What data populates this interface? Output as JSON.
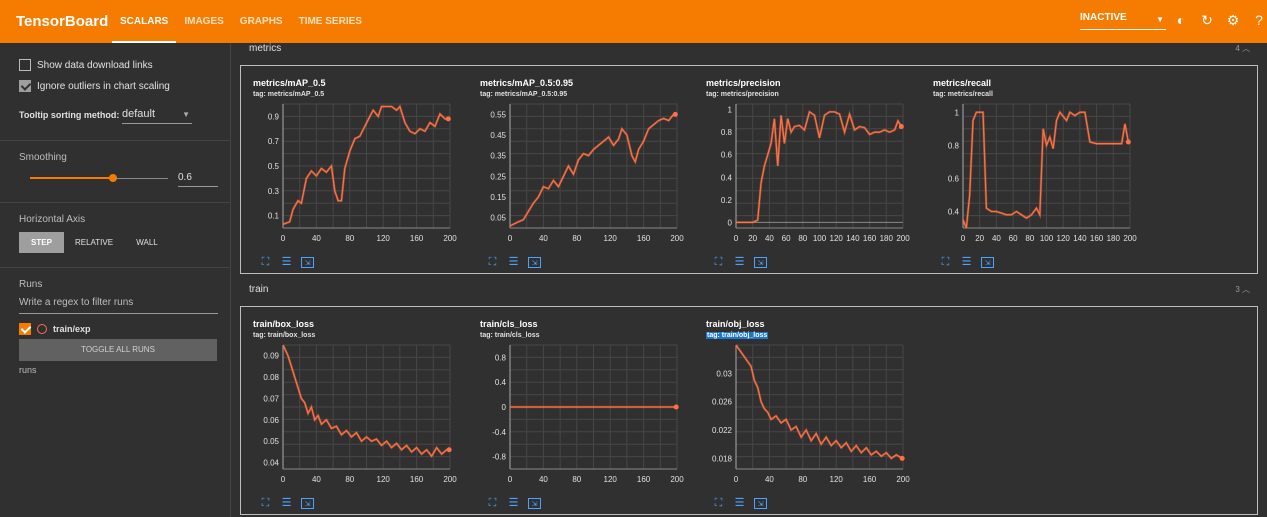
{
  "app": {
    "title": "TensorBoard"
  },
  "nav": {
    "tabs": [
      "SCALARS",
      "IMAGES",
      "GRAPHS",
      "TIME SERIES"
    ]
  },
  "header": {
    "status": "INACTIVE"
  },
  "sidebar": {
    "show_download": "Show data download links",
    "ignore_outliers": "Ignore outliers in chart scaling",
    "tooltip_label": "Tooltip sorting method:",
    "tooltip_value": "default",
    "smoothing_title": "Smoothing",
    "smoothing_value": "0.6",
    "axis_title": "Horizontal Axis",
    "axis_step": "STEP",
    "axis_relative": "RELATIVE",
    "axis_wall": "WALL",
    "runs_title": "Runs",
    "filter_placeholder": "Write a regex to filter runs",
    "run_name": "train/exp",
    "toggle_runs": "TOGGLE ALL RUNS",
    "runs_footer": "runs"
  },
  "sections": [
    {
      "name": "metrics",
      "count": "4"
    },
    {
      "name": "train",
      "count": "3"
    }
  ],
  "colors": {
    "accent": "#f57c00",
    "series": "#ff7043",
    "link": "#4aa3ff"
  },
  "charts": [
    {
      "title": "metrics/mAP_0.5",
      "tag": "tag: metrics/mAP_0.5",
      "yticks": [
        "0.9",
        "0.7",
        "0.5",
        "0.3",
        "0.1"
      ],
      "xticks": [
        "0",
        "40",
        "80",
        "120",
        "160",
        "200"
      ],
      "ylim": [
        0,
        1.0
      ],
      "xlim": [
        0,
        200
      ],
      "points": [
        [
          0,
          0.03
        ],
        [
          8,
          0.05
        ],
        [
          12,
          0.15
        ],
        [
          18,
          0.22
        ],
        [
          22,
          0.2
        ],
        [
          28,
          0.4
        ],
        [
          34,
          0.46
        ],
        [
          40,
          0.42
        ],
        [
          46,
          0.48
        ],
        [
          52,
          0.45
        ],
        [
          58,
          0.5
        ],
        [
          62,
          0.3
        ],
        [
          66,
          0.22
        ],
        [
          70,
          0.22
        ],
        [
          74,
          0.48
        ],
        [
          80,
          0.62
        ],
        [
          86,
          0.72
        ],
        [
          92,
          0.74
        ],
        [
          98,
          0.82
        ],
        [
          104,
          0.9
        ],
        [
          108,
          0.95
        ],
        [
          114,
          0.9
        ],
        [
          118,
          0.98
        ],
        [
          124,
          0.98
        ],
        [
          130,
          0.98
        ],
        [
          136,
          0.95
        ],
        [
          140,
          0.98
        ],
        [
          146,
          0.85
        ],
        [
          152,
          0.78
        ],
        [
          158,
          0.76
        ],
        [
          164,
          0.8
        ],
        [
          170,
          0.78
        ],
        [
          176,
          0.85
        ],
        [
          182,
          0.82
        ],
        [
          188,
          0.92
        ],
        [
          194,
          0.88
        ],
        [
          198,
          0.88
        ]
      ]
    },
    {
      "title": "metrics/mAP_0.5:0.95",
      "tag": "tag: metrics/mAP_0.5:0.95",
      "yticks": [
        "0.55",
        "0.45",
        "0.35",
        "0.25",
        "0.15",
        "0.05"
      ],
      "xticks": [
        "0",
        "40",
        "80",
        "120",
        "160",
        "200"
      ],
      "ylim": [
        0,
        0.6
      ],
      "xlim": [
        0,
        200
      ],
      "points": [
        [
          0,
          0.01
        ],
        [
          10,
          0.03
        ],
        [
          16,
          0.04
        ],
        [
          22,
          0.08
        ],
        [
          28,
          0.12
        ],
        [
          34,
          0.15
        ],
        [
          40,
          0.2
        ],
        [
          46,
          0.19
        ],
        [
          52,
          0.23
        ],
        [
          58,
          0.2
        ],
        [
          64,
          0.25
        ],
        [
          70,
          0.3
        ],
        [
          76,
          0.26
        ],
        [
          82,
          0.33
        ],
        [
          88,
          0.36
        ],
        [
          94,
          0.35
        ],
        [
          100,
          0.38
        ],
        [
          106,
          0.4
        ],
        [
          112,
          0.42
        ],
        [
          118,
          0.44
        ],
        [
          124,
          0.4
        ],
        [
          130,
          0.43
        ],
        [
          134,
          0.48
        ],
        [
          140,
          0.45
        ],
        [
          146,
          0.35
        ],
        [
          150,
          0.32
        ],
        [
          154,
          0.38
        ],
        [
          160,
          0.42
        ],
        [
          166,
          0.48
        ],
        [
          172,
          0.5
        ],
        [
          178,
          0.52
        ],
        [
          184,
          0.53
        ],
        [
          190,
          0.52
        ],
        [
          196,
          0.55
        ],
        [
          198,
          0.55
        ]
      ]
    },
    {
      "title": "metrics/precision",
      "tag": "tag: metrics/precision",
      "yticks": [
        "1",
        "0.8",
        "0.6",
        "0.4",
        "0.2",
        "0"
      ],
      "xticks": [
        "0",
        "20",
        "40",
        "60",
        "80",
        "100",
        "120",
        "140",
        "160",
        "180",
        "200"
      ],
      "ylim": [
        -0.05,
        1.05
      ],
      "xlim": [
        0,
        200
      ],
      "points": [
        [
          0,
          0
        ],
        [
          20,
          0
        ],
        [
          26,
          0.02
        ],
        [
          30,
          0.35
        ],
        [
          34,
          0.5
        ],
        [
          38,
          0.6
        ],
        [
          42,
          0.7
        ],
        [
          46,
          0.92
        ],
        [
          50,
          0.5
        ],
        [
          54,
          0.95
        ],
        [
          58,
          0.7
        ],
        [
          62,
          0.92
        ],
        [
          66,
          0.8
        ],
        [
          70,
          0.85
        ],
        [
          76,
          0.86
        ],
        [
          82,
          0.82
        ],
        [
          88,
          0.98
        ],
        [
          94,
          0.95
        ],
        [
          100,
          0.75
        ],
        [
          106,
          0.95
        ],
        [
          112,
          0.98
        ],
        [
          118,
          0.98
        ],
        [
          124,
          0.96
        ],
        [
          130,
          0.8
        ],
        [
          136,
          0.96
        ],
        [
          142,
          0.82
        ],
        [
          148,
          0.85
        ],
        [
          154,
          0.84
        ],
        [
          160,
          0.78
        ],
        [
          166,
          0.8
        ],
        [
          172,
          0.8
        ],
        [
          178,
          0.82
        ],
        [
          184,
          0.8
        ],
        [
          190,
          0.82
        ],
        [
          194,
          0.9
        ],
        [
          198,
          0.85
        ]
      ]
    },
    {
      "title": "metrics/recall",
      "tag": "tag: metrics/recall",
      "yticks": [
        "1",
        "0.8",
        "0.6",
        "0.4"
      ],
      "xticks": [
        "0",
        "20",
        "40",
        "60",
        "80",
        "100",
        "120",
        "140",
        "160",
        "180",
        "200"
      ],
      "ylim": [
        0.3,
        1.05
      ],
      "xlim": [
        0,
        200
      ],
      "points": [
        [
          0,
          0.35
        ],
        [
          4,
          0.3
        ],
        [
          8,
          0.5
        ],
        [
          12,
          0.95
        ],
        [
          16,
          1.0
        ],
        [
          24,
          1.0
        ],
        [
          28,
          0.42
        ],
        [
          34,
          0.4
        ],
        [
          40,
          0.4
        ],
        [
          46,
          0.39
        ],
        [
          52,
          0.38
        ],
        [
          58,
          0.38
        ],
        [
          64,
          0.4
        ],
        [
          70,
          0.38
        ],
        [
          76,
          0.36
        ],
        [
          82,
          0.38
        ],
        [
          88,
          0.42
        ],
        [
          92,
          0.38
        ],
        [
          96,
          0.9
        ],
        [
          100,
          0.8
        ],
        [
          104,
          0.85
        ],
        [
          108,
          0.78
        ],
        [
          112,
          0.95
        ],
        [
          116,
          1.0
        ],
        [
          124,
          0.95
        ],
        [
          128,
          1.0
        ],
        [
          134,
          0.98
        ],
        [
          140,
          1.0
        ],
        [
          146,
          1.0
        ],
        [
          152,
          0.82
        ],
        [
          160,
          0.81
        ],
        [
          170,
          0.81
        ],
        [
          180,
          0.81
        ],
        [
          190,
          0.81
        ],
        [
          194,
          0.93
        ],
        [
          198,
          0.82
        ]
      ]
    },
    {
      "title": "train/box_loss",
      "tag": "tag: train/box_loss",
      "yticks": [
        "0.09",
        "0.08",
        "0.07",
        "0.06",
        "0.05",
        "0.04"
      ],
      "xticks": [
        "0",
        "40",
        "80",
        "120",
        "160",
        "200"
      ],
      "ylim": [
        0.037,
        0.095
      ],
      "xlim": [
        0,
        200
      ],
      "points": [
        [
          0,
          0.095
        ],
        [
          6,
          0.09
        ],
        [
          10,
          0.085
        ],
        [
          14,
          0.08
        ],
        [
          18,
          0.075
        ],
        [
          22,
          0.07
        ],
        [
          26,
          0.068
        ],
        [
          30,
          0.063
        ],
        [
          34,
          0.066
        ],
        [
          38,
          0.06
        ],
        [
          42,
          0.062
        ],
        [
          46,
          0.058
        ],
        [
          52,
          0.06
        ],
        [
          58,
          0.056
        ],
        [
          64,
          0.057
        ],
        [
          70,
          0.053
        ],
        [
          76,
          0.055
        ],
        [
          82,
          0.052
        ],
        [
          88,
          0.054
        ],
        [
          94,
          0.05
        ],
        [
          100,
          0.052
        ],
        [
          106,
          0.05
        ],
        [
          112,
          0.051
        ],
        [
          118,
          0.048
        ],
        [
          124,
          0.05
        ],
        [
          130,
          0.047
        ],
        [
          136,
          0.049
        ],
        [
          142,
          0.046
        ],
        [
          148,
          0.048
        ],
        [
          154,
          0.045
        ],
        [
          160,
          0.047
        ],
        [
          166,
          0.044
        ],
        [
          172,
          0.046
        ],
        [
          178,
          0.043
        ],
        [
          184,
          0.047
        ],
        [
          190,
          0.044
        ],
        [
          196,
          0.046
        ],
        [
          199,
          0.046
        ]
      ]
    },
    {
      "title": "train/cls_loss",
      "tag": "tag: train/cls_loss",
      "yticks": [
        "0.8",
        "0.4",
        "0",
        "-0.4",
        "-0.8"
      ],
      "xticks": [
        "0",
        "40",
        "80",
        "120",
        "160",
        "200"
      ],
      "ylim": [
        -1.0,
        1.0
      ],
      "xlim": [
        0,
        200
      ],
      "points": [
        [
          0,
          0
        ],
        [
          40,
          0
        ],
        [
          80,
          0
        ],
        [
          120,
          0
        ],
        [
          160,
          0
        ],
        [
          199,
          0
        ]
      ]
    },
    {
      "title": "train/obj_loss",
      "tag": "tag: train/obj_loss",
      "yticks": [
        "0.03",
        "0.026",
        "0.022",
        "0.018"
      ],
      "xticks": [
        "0",
        "40",
        "80",
        "120",
        "160",
        "200"
      ],
      "ylim": [
        0.0165,
        0.034
      ],
      "xlim": [
        0,
        200
      ],
      "points": [
        [
          0,
          0.034
        ],
        [
          6,
          0.033
        ],
        [
          12,
          0.032
        ],
        [
          18,
          0.031
        ],
        [
          22,
          0.029
        ],
        [
          26,
          0.028
        ],
        [
          30,
          0.026
        ],
        [
          34,
          0.025
        ],
        [
          38,
          0.0245
        ],
        [
          42,
          0.0235
        ],
        [
          48,
          0.024
        ],
        [
          54,
          0.023
        ],
        [
          60,
          0.0235
        ],
        [
          66,
          0.022
        ],
        [
          72,
          0.0225
        ],
        [
          78,
          0.021
        ],
        [
          84,
          0.022
        ],
        [
          90,
          0.0205
        ],
        [
          96,
          0.0215
        ],
        [
          102,
          0.02
        ],
        [
          108,
          0.021
        ],
        [
          114,
          0.0198
        ],
        [
          120,
          0.0205
        ],
        [
          126,
          0.0195
        ],
        [
          132,
          0.0202
        ],
        [
          138,
          0.019
        ],
        [
          144,
          0.0198
        ],
        [
          150,
          0.0188
        ],
        [
          156,
          0.0195
        ],
        [
          162,
          0.0185
        ],
        [
          168,
          0.019
        ],
        [
          174,
          0.0183
        ],
        [
          180,
          0.0188
        ],
        [
          186,
          0.018
        ],
        [
          192,
          0.0185
        ],
        [
          199,
          0.018
        ]
      ]
    }
  ]
}
